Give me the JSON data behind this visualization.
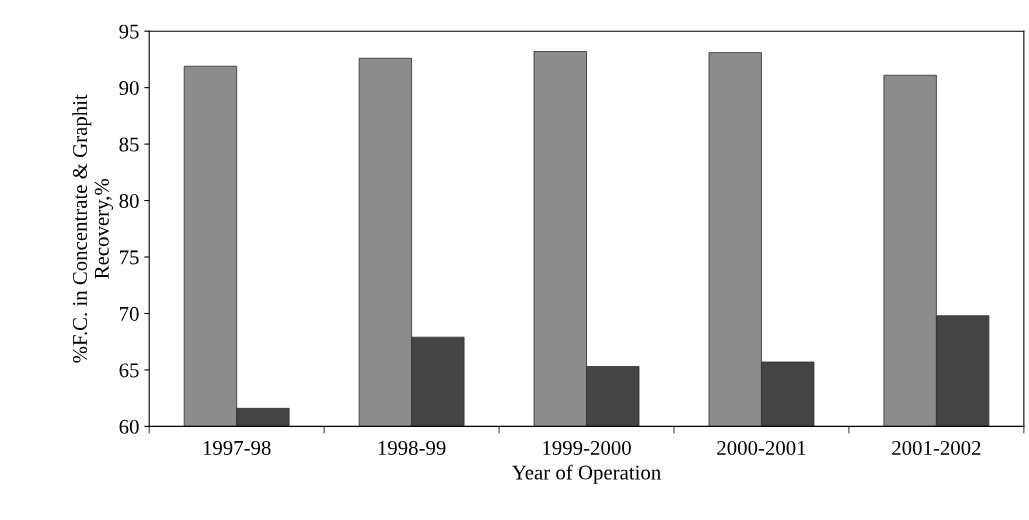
{
  "chart_data": {
    "type": "bar",
    "xlabel": "Year of Operation",
    "ylabel": "%F.C. in Concentrate & Graphit\nRecovery,%",
    "categories": [
      "1997-98",
      "1998-99",
      "1999-2000",
      "2000-2001",
      "2001-2002"
    ],
    "series": [
      {
        "color": "#8c8c8c",
        "values": [
          91.9,
          92.6,
          93.2,
          93.1,
          91.1
        ]
      },
      {
        "color": "#444444",
        "values": [
          61.6,
          67.9,
          65.3,
          65.7,
          69.8
        ]
      }
    ],
    "ylim": [
      60,
      95
    ],
    "yticks": [
      60,
      65,
      70,
      75,
      80,
      85,
      90,
      95
    ],
    "grid": false,
    "legend": false
  }
}
